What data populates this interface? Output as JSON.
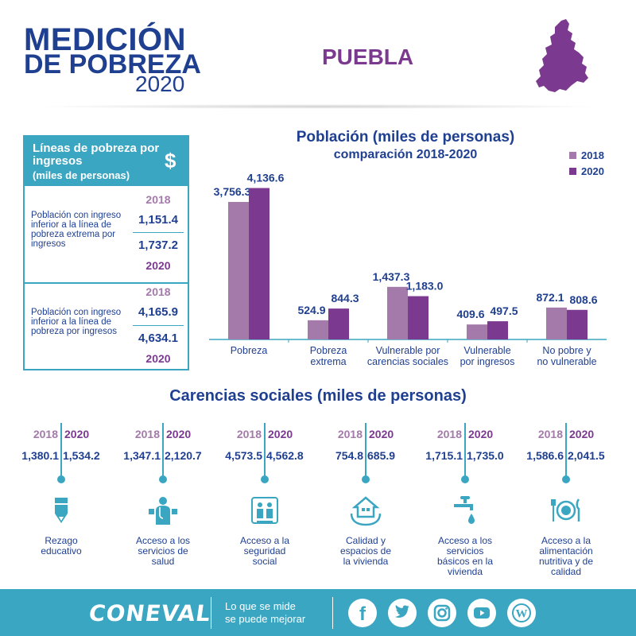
{
  "header": {
    "title_line1": "MEDICIÓN",
    "title_line2": "DE POBREZA",
    "title_year": "2020",
    "state": "PUEBLA"
  },
  "colors": {
    "blue": "#1f3f91",
    "teal": "#3aa6c2",
    "purple_2018": "#a47aaa",
    "purple_2020": "#7b3a8f"
  },
  "poverty_lines": {
    "title": "Líneas de pobreza por ingresos",
    "subtitle": "(miles de personas)",
    "icon": "dollar-sign",
    "symbol": "$",
    "rows": [
      {
        "description": "Población con ingreso inferior a la línea de pobreza extrema por ingresos",
        "year_2018": "2018",
        "value_2018": "1,151.4",
        "value_2020": "1,737.2",
        "year_2020": "2020"
      },
      {
        "description": "Población con ingreso inferior a la línea de pobreza por ingresos",
        "year_2018": "2018",
        "value_2018": "4,165.9",
        "value_2020": "4,634.1",
        "year_2020": "2020"
      }
    ]
  },
  "chart_data": {
    "type": "bar",
    "title": "Población (miles de personas)",
    "subtitle": "comparación 2018-2020",
    "categories": [
      "Pobreza",
      "Pobreza extrema",
      "Vulnerable por carencias sociales",
      "Vulnerable por ingresos",
      "No pobre y no vulnerable"
    ],
    "category_lines": [
      [
        "Pobreza"
      ],
      [
        "Pobreza",
        "extrema"
      ],
      [
        "Vulnerable por",
        "carencias sociales"
      ],
      [
        "Vulnerable",
        "por ingresos"
      ],
      [
        "No pobre y",
        "no vulnerable"
      ]
    ],
    "series": [
      {
        "name": "2018",
        "color": "#a47aaa",
        "values": [
          3756.3,
          524.9,
          1437.3,
          409.6,
          872.1
        ],
        "labels": [
          "3,756.3",
          "524.9",
          "1,437.3",
          "409.6",
          "872.1"
        ]
      },
      {
        "name": "2020",
        "color": "#7b3a8f",
        "values": [
          4136.6,
          844.3,
          1183.0,
          497.5,
          808.6
        ],
        "labels": [
          "4,136.6",
          "844.3",
          "1,183.0",
          "497.5",
          "808.6"
        ]
      }
    ],
    "legend_position": "top-right",
    "grid": false
  },
  "carencias": {
    "title": "Carencias sociales (miles de personas)",
    "year_2018": "2018",
    "year_2020": "2020",
    "items": [
      {
        "label_lines": [
          "Rezago",
          "educativo"
        ],
        "v2018": "1,380.1",
        "v2020": "1,534.2",
        "icon": "pencil-icon"
      },
      {
        "label_lines": [
          "Acceso a los",
          "servicios de",
          "salud"
        ],
        "v2018": "1,347.1",
        "v2020": "2,120.7",
        "icon": "doctor-icon"
      },
      {
        "label_lines": [
          "Acceso a la",
          "seguridad",
          "social"
        ],
        "v2018": "4,573.5",
        "v2020": "4,562.8",
        "icon": "social-security-icon"
      },
      {
        "label_lines": [
          "Calidad y",
          "espacios de",
          "la vivienda"
        ],
        "v2018": "754.8",
        "v2020": "685.9",
        "icon": "house-hands-icon"
      },
      {
        "label_lines": [
          "Acceso a los",
          "servicios",
          "básicos en la",
          "vivienda"
        ],
        "v2018": "1,715.1",
        "v2020": "1,735.0",
        "icon": "water-tap-icon"
      },
      {
        "label_lines": [
          "Acceso a la",
          "alimentación",
          "nutritiva y de",
          "calidad"
        ],
        "v2018": "1,586.6",
        "v2020": "2,041.5",
        "icon": "plate-icon"
      }
    ]
  },
  "footer": {
    "brand": "CONEVAL",
    "slogan_line1": "Lo que se mide",
    "slogan_line2": "se puede mejorar",
    "social": [
      {
        "name": "facebook-icon",
        "glyph": "f"
      },
      {
        "name": "twitter-icon",
        "glyph": ""
      },
      {
        "name": "instagram-icon",
        "glyph": ""
      },
      {
        "name": "youtube-icon",
        "glyph": ""
      },
      {
        "name": "wordpress-icon",
        "glyph": "W"
      }
    ]
  }
}
